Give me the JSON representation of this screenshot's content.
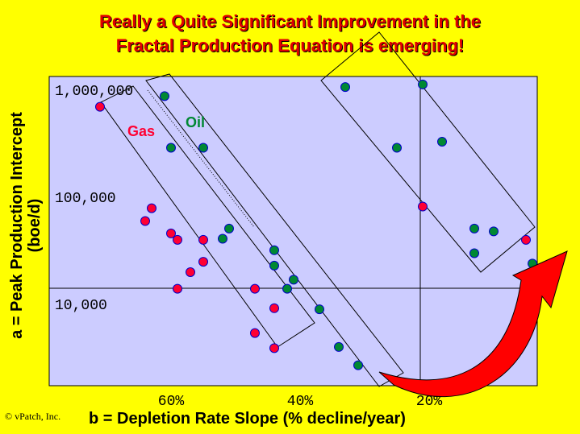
{
  "title_line1": "Really a Quite Significant Improvement in the",
  "title_line2": "Fractal Production Equation is emerging!",
  "copyright": "© vPatch, Inc.",
  "colors": {
    "background": "#ffff00",
    "plot_bg": "#ccccff",
    "gas": "#ff0033",
    "oil": "#008833",
    "title": "#e00000"
  },
  "chart_data": {
    "type": "scatter",
    "ylabel_line1": "a = Peak Production Intercept",
    "ylabel_line2": "(boe/d)",
    "xlabel": "b = Depletion Rate Slope (% decline/year)",
    "y_scale": "log",
    "x_ticks": [
      "60%",
      "40%",
      "20%"
    ],
    "y_ticks": [
      "1,000,000",
      "100,000",
      "10,000"
    ],
    "series_labels": {
      "gas": "Gas",
      "oil": "Oil"
    },
    "series": [
      {
        "name": "Gas",
        "color": "#ff0033",
        "points": [
          [
            0.71,
            700000
          ],
          [
            0.63,
            79000
          ],
          [
            0.64,
            60000
          ],
          [
            0.6,
            46000
          ],
          [
            0.59,
            40000
          ],
          [
            0.55,
            40000
          ],
          [
            0.55,
            25000
          ],
          [
            0.57,
            20000
          ],
          [
            0.59,
            14000
          ],
          [
            0.47,
            14000
          ],
          [
            0.44,
            9200
          ],
          [
            0.47,
            5400
          ],
          [
            0.44,
            3900
          ],
          [
            0.21,
            82000
          ],
          [
            0.05,
            40000
          ]
        ]
      },
      {
        "name": "Oil",
        "color": "#008833",
        "points": [
          [
            0.61,
            880000
          ],
          [
            0.6,
            290000
          ],
          [
            0.55,
            290000
          ],
          [
            0.51,
            51000
          ],
          [
            0.52,
            41000
          ],
          [
            0.44,
            32000
          ],
          [
            0.44,
            23000
          ],
          [
            0.41,
            17000
          ],
          [
            0.42,
            14000
          ],
          [
            0.37,
            9000
          ],
          [
            0.34,
            4000
          ],
          [
            0.31,
            2700
          ],
          [
            0.33,
            1070000
          ],
          [
            0.21,
            1130000
          ],
          [
            0.25,
            290000
          ],
          [
            0.18,
            330000
          ],
          [
            0.13,
            51000
          ],
          [
            0.1,
            48000
          ],
          [
            0.13,
            30000
          ],
          [
            0.04,
            24000
          ]
        ]
      }
    ]
  }
}
